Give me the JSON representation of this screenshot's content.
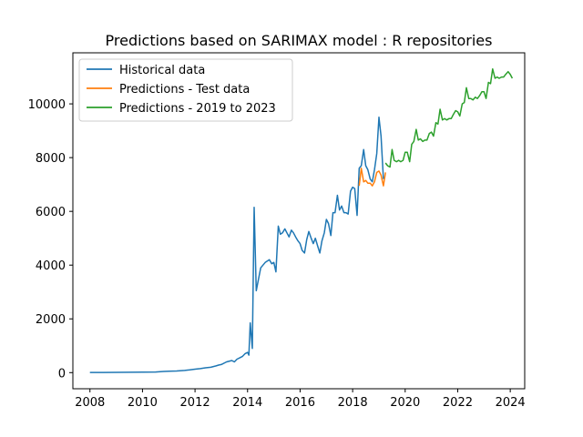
{
  "chart_data": {
    "type": "line",
    "title": "Predictions based on SARIMAX model : R repositories",
    "xlabel": "",
    "ylabel": "",
    "xlim": [
      2007.35,
      2024.55
    ],
    "ylim": [
      -600,
      11900
    ],
    "xticks": [
      2008,
      2010,
      2012,
      2014,
      2016,
      2018,
      2020,
      2022,
      2024
    ],
    "yticks": [
      0,
      2000,
      4000,
      6000,
      8000,
      10000
    ],
    "xtick_labels": [
      "2008",
      "2010",
      "2012",
      "2014",
      "2016",
      "2018",
      "2020",
      "2022",
      "2024"
    ],
    "ytick_labels": [
      "0",
      "2000",
      "4000",
      "6000",
      "8000",
      "10000"
    ],
    "grid": false,
    "legend_position": "top-left",
    "series": [
      {
        "name": "Historical data",
        "color": "#1f77b4",
        "points": [
          [
            2008.0,
            5
          ],
          [
            2008.5,
            8
          ],
          [
            2009.0,
            10
          ],
          [
            2009.5,
            12
          ],
          [
            2010.0,
            15
          ],
          [
            2010.5,
            25
          ],
          [
            2010.8,
            45
          ],
          [
            2011.0,
            50
          ],
          [
            2011.3,
            60
          ],
          [
            2011.6,
            80
          ],
          [
            2011.8,
            100
          ],
          [
            2012.0,
            130
          ],
          [
            2012.2,
            150
          ],
          [
            2012.4,
            180
          ],
          [
            2012.6,
            200
          ],
          [
            2012.8,
            250
          ],
          [
            2012.9,
            280
          ],
          [
            2013.0,
            300
          ],
          [
            2013.2,
            400
          ],
          [
            2013.4,
            450
          ],
          [
            2013.5,
            400
          ],
          [
            2013.6,
            500
          ],
          [
            2013.7,
            550
          ],
          [
            2013.8,
            600
          ],
          [
            2013.9,
            700
          ],
          [
            2014.0,
            750
          ],
          [
            2014.05,
            650
          ],
          [
            2014.1,
            1850
          ],
          [
            2014.18,
            900
          ],
          [
            2014.25,
            6150
          ],
          [
            2014.33,
            3050
          ],
          [
            2014.42,
            3500
          ],
          [
            2014.5,
            3900
          ],
          [
            2014.67,
            4100
          ],
          [
            2014.83,
            4200
          ],
          [
            2014.92,
            4050
          ],
          [
            2015.0,
            4100
          ],
          [
            2015.08,
            3750
          ],
          [
            2015.17,
            5450
          ],
          [
            2015.25,
            5150
          ],
          [
            2015.33,
            5200
          ],
          [
            2015.42,
            5350
          ],
          [
            2015.5,
            5200
          ],
          [
            2015.58,
            5050
          ],
          [
            2015.67,
            5300
          ],
          [
            2015.75,
            5200
          ],
          [
            2015.83,
            5050
          ],
          [
            2015.92,
            4900
          ],
          [
            2016.0,
            4800
          ],
          [
            2016.08,
            4550
          ],
          [
            2016.17,
            4450
          ],
          [
            2016.25,
            4950
          ],
          [
            2016.33,
            5250
          ],
          [
            2016.42,
            5000
          ],
          [
            2016.5,
            4800
          ],
          [
            2016.58,
            5000
          ],
          [
            2016.67,
            4700
          ],
          [
            2016.75,
            4450
          ],
          [
            2016.83,
            4900
          ],
          [
            2016.92,
            5200
          ],
          [
            2017.0,
            5700
          ],
          [
            2017.08,
            5550
          ],
          [
            2017.17,
            5100
          ],
          [
            2017.25,
            5950
          ],
          [
            2017.33,
            5950
          ],
          [
            2017.42,
            6600
          ],
          [
            2017.5,
            6050
          ],
          [
            2017.58,
            6200
          ],
          [
            2017.67,
            5950
          ],
          [
            2017.75,
            5950
          ],
          [
            2017.83,
            5900
          ],
          [
            2017.92,
            6750
          ],
          [
            2018.0,
            6900
          ],
          [
            2018.08,
            6850
          ],
          [
            2018.17,
            5850
          ],
          [
            2018.25,
            7600
          ],
          [
            2018.33,
            7700
          ],
          [
            2018.42,
            8300
          ],
          [
            2018.5,
            7700
          ],
          [
            2018.58,
            7550
          ],
          [
            2018.67,
            7200
          ],
          [
            2018.75,
            7100
          ],
          [
            2018.83,
            7550
          ],
          [
            2018.92,
            8150
          ],
          [
            2019.0,
            9500
          ],
          [
            2019.08,
            8800
          ],
          [
            2019.17,
            7200
          ]
        ]
      },
      {
        "name": "Predictions - Test data",
        "color": "#ff7f0e",
        "points": [
          [
            2018.25,
            6950
          ],
          [
            2018.33,
            7600
          ],
          [
            2018.42,
            7100
          ],
          [
            2018.5,
            7150
          ],
          [
            2018.58,
            7050
          ],
          [
            2018.67,
            7050
          ],
          [
            2018.75,
            6950
          ],
          [
            2018.83,
            7100
          ],
          [
            2018.92,
            7450
          ],
          [
            2019.0,
            7500
          ],
          [
            2019.08,
            7350
          ],
          [
            2019.17,
            6950
          ],
          [
            2019.25,
            7450
          ]
        ]
      },
      {
        "name": "Predictions - 2019 to 2023",
        "color": "#2ca02c",
        "points": [
          [
            2019.25,
            7800
          ],
          [
            2019.33,
            7700
          ],
          [
            2019.42,
            7650
          ],
          [
            2019.5,
            8300
          ],
          [
            2019.58,
            7900
          ],
          [
            2019.67,
            7850
          ],
          [
            2019.75,
            7900
          ],
          [
            2019.83,
            7850
          ],
          [
            2019.92,
            7900
          ],
          [
            2020.0,
            8200
          ],
          [
            2020.08,
            8200
          ],
          [
            2020.17,
            7850
          ],
          [
            2020.25,
            8500
          ],
          [
            2020.33,
            8600
          ],
          [
            2020.42,
            9050
          ],
          [
            2020.5,
            8650
          ],
          [
            2020.58,
            8700
          ],
          [
            2020.67,
            8600
          ],
          [
            2020.75,
            8650
          ],
          [
            2020.83,
            8650
          ],
          [
            2020.92,
            8900
          ],
          [
            2021.0,
            8950
          ],
          [
            2021.08,
            8800
          ],
          [
            2021.17,
            9300
          ],
          [
            2021.25,
            9250
          ],
          [
            2021.33,
            9800
          ],
          [
            2021.42,
            9400
          ],
          [
            2021.5,
            9450
          ],
          [
            2021.58,
            9400
          ],
          [
            2021.67,
            9450
          ],
          [
            2021.75,
            9450
          ],
          [
            2021.83,
            9600
          ],
          [
            2021.92,
            9750
          ],
          [
            2022.0,
            9700
          ],
          [
            2022.08,
            9550
          ],
          [
            2022.17,
            10000
          ],
          [
            2022.25,
            10050
          ],
          [
            2022.33,
            10600
          ],
          [
            2022.42,
            10200
          ],
          [
            2022.5,
            10200
          ],
          [
            2022.58,
            10150
          ],
          [
            2022.67,
            10250
          ],
          [
            2022.75,
            10200
          ],
          [
            2022.83,
            10300
          ],
          [
            2022.92,
            10450
          ],
          [
            2023.0,
            10450
          ],
          [
            2023.08,
            10200
          ],
          [
            2023.17,
            10800
          ],
          [
            2023.25,
            10750
          ],
          [
            2023.33,
            11300
          ],
          [
            2023.42,
            10950
          ],
          [
            2023.5,
            11000
          ],
          [
            2023.58,
            10950
          ],
          [
            2023.67,
            11000
          ],
          [
            2023.75,
            11000
          ],
          [
            2023.83,
            11100
          ],
          [
            2023.92,
            11200
          ],
          [
            2024.0,
            11100
          ],
          [
            2024.08,
            10950
          ]
        ]
      }
    ]
  }
}
